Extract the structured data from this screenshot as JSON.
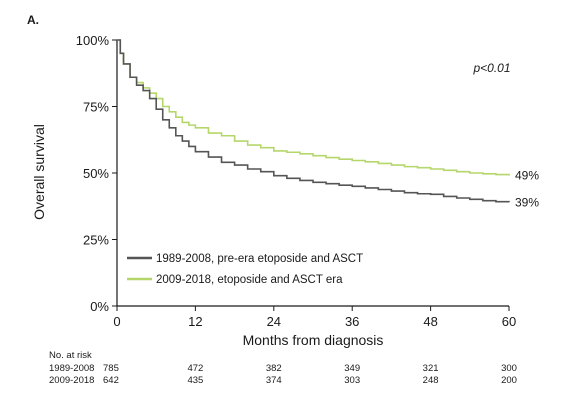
{
  "panel_label": "A.",
  "chart_data": {
    "type": "line",
    "subtype": "kaplan-meier",
    "xlabel": "Months from diagnosis",
    "ylabel": "Overall survival",
    "xlim": [
      0,
      60
    ],
    "ylim": [
      0,
      100
    ],
    "xticks": [
      0,
      12,
      24,
      36,
      48,
      60
    ],
    "yticks": [
      0,
      25,
      50,
      75,
      100
    ],
    "ytick_labels": [
      "0%",
      "25%",
      "50%",
      "75%",
      "100%"
    ],
    "annotation": "p<0.01",
    "legend_position": "bottom-left",
    "grid": false,
    "series": [
      {
        "name": "1989-2008, pre-era etoposide and ASCT",
        "color": "#555555",
        "end_label": "39%",
        "x": [
          0,
          0.5,
          1,
          2,
          3,
          4,
          5,
          6,
          7,
          8,
          9,
          10,
          11,
          12,
          14,
          16,
          18,
          20,
          22,
          24,
          26,
          28,
          30,
          32,
          34,
          36,
          38,
          40,
          42,
          44,
          46,
          48,
          50,
          52,
          54,
          56,
          58,
          60
        ],
        "y": [
          100,
          95,
          91,
          86,
          83,
          81,
          78,
          74,
          70,
          67,
          64,
          62,
          60,
          58,
          56,
          54,
          53,
          51.5,
          50.5,
          49,
          48,
          47.2,
          46.5,
          46,
          45.4,
          45,
          44.4,
          43.8,
          43.2,
          42.6,
          42.2,
          42,
          41.2,
          40.6,
          40.1,
          39.6,
          39.2,
          39
        ]
      },
      {
        "name": "2009-2018, etoposide and ASCT era",
        "color": "#b5d66b",
        "end_label": "49%",
        "x": [
          0,
          0.5,
          1,
          2,
          3,
          4,
          5,
          6,
          7,
          8,
          9,
          10,
          11,
          12,
          14,
          16,
          18,
          20,
          22,
          24,
          26,
          28,
          30,
          32,
          34,
          36,
          38,
          40,
          42,
          44,
          46,
          48,
          50,
          52,
          54,
          56,
          58,
          60
        ],
        "y": [
          100,
          95,
          91,
          86,
          84,
          82,
          80,
          78,
          75,
          73,
          71,
          69,
          68,
          67,
          65,
          64,
          62,
          60.5,
          59.5,
          58.3,
          57.8,
          57.2,
          56.5,
          55.8,
          55.2,
          54.7,
          54.2,
          53.6,
          53,
          52.4,
          52,
          51.5,
          51,
          50.5,
          50,
          49.7,
          49.4,
          49
        ]
      }
    ],
    "risk_table": {
      "title": "No. at risk",
      "timepoints": [
        0,
        12,
        24,
        36,
        48,
        60
      ],
      "rows": [
        {
          "label": "1989-2008",
          "values": [
            "785",
            "472",
            "382",
            "349",
            "321",
            "300"
          ]
        },
        {
          "label": "2009-2018",
          "values": [
            "642",
            "435",
            "374",
            "303",
            "248",
            "200"
          ]
        }
      ]
    }
  }
}
